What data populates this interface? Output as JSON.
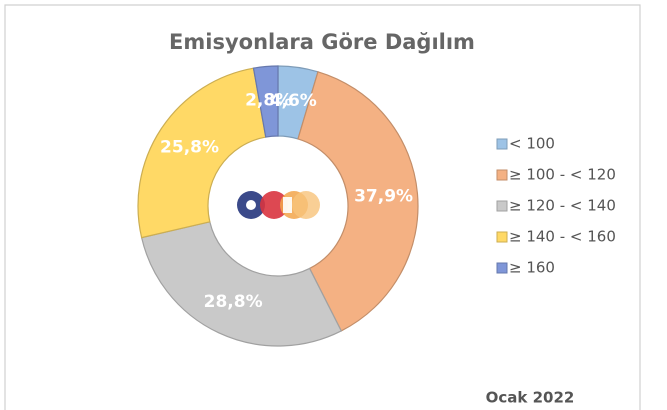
{
  "chart_data": {
    "type": "donut",
    "title": "Emisyonlara Göre Dağılım",
    "categories": [
      "< 100",
      "≥ 100 - < 120",
      "≥ 120 - < 140",
      "≥ 140 - < 160",
      "≥  160"
    ],
    "values": [
      4.6,
      37.9,
      28.8,
      25.8,
      2.8
    ],
    "value_labels": [
      "4,6%",
      "37,9%",
      "28,8%",
      "25,8%",
      "2,8%"
    ],
    "colors": [
      "#9dc3e6",
      "#f4b183",
      "#c9c9c9",
      "#ffd966",
      "#7f96d8"
    ],
    "legend": "right",
    "footnote": "Ocak 2022"
  }
}
